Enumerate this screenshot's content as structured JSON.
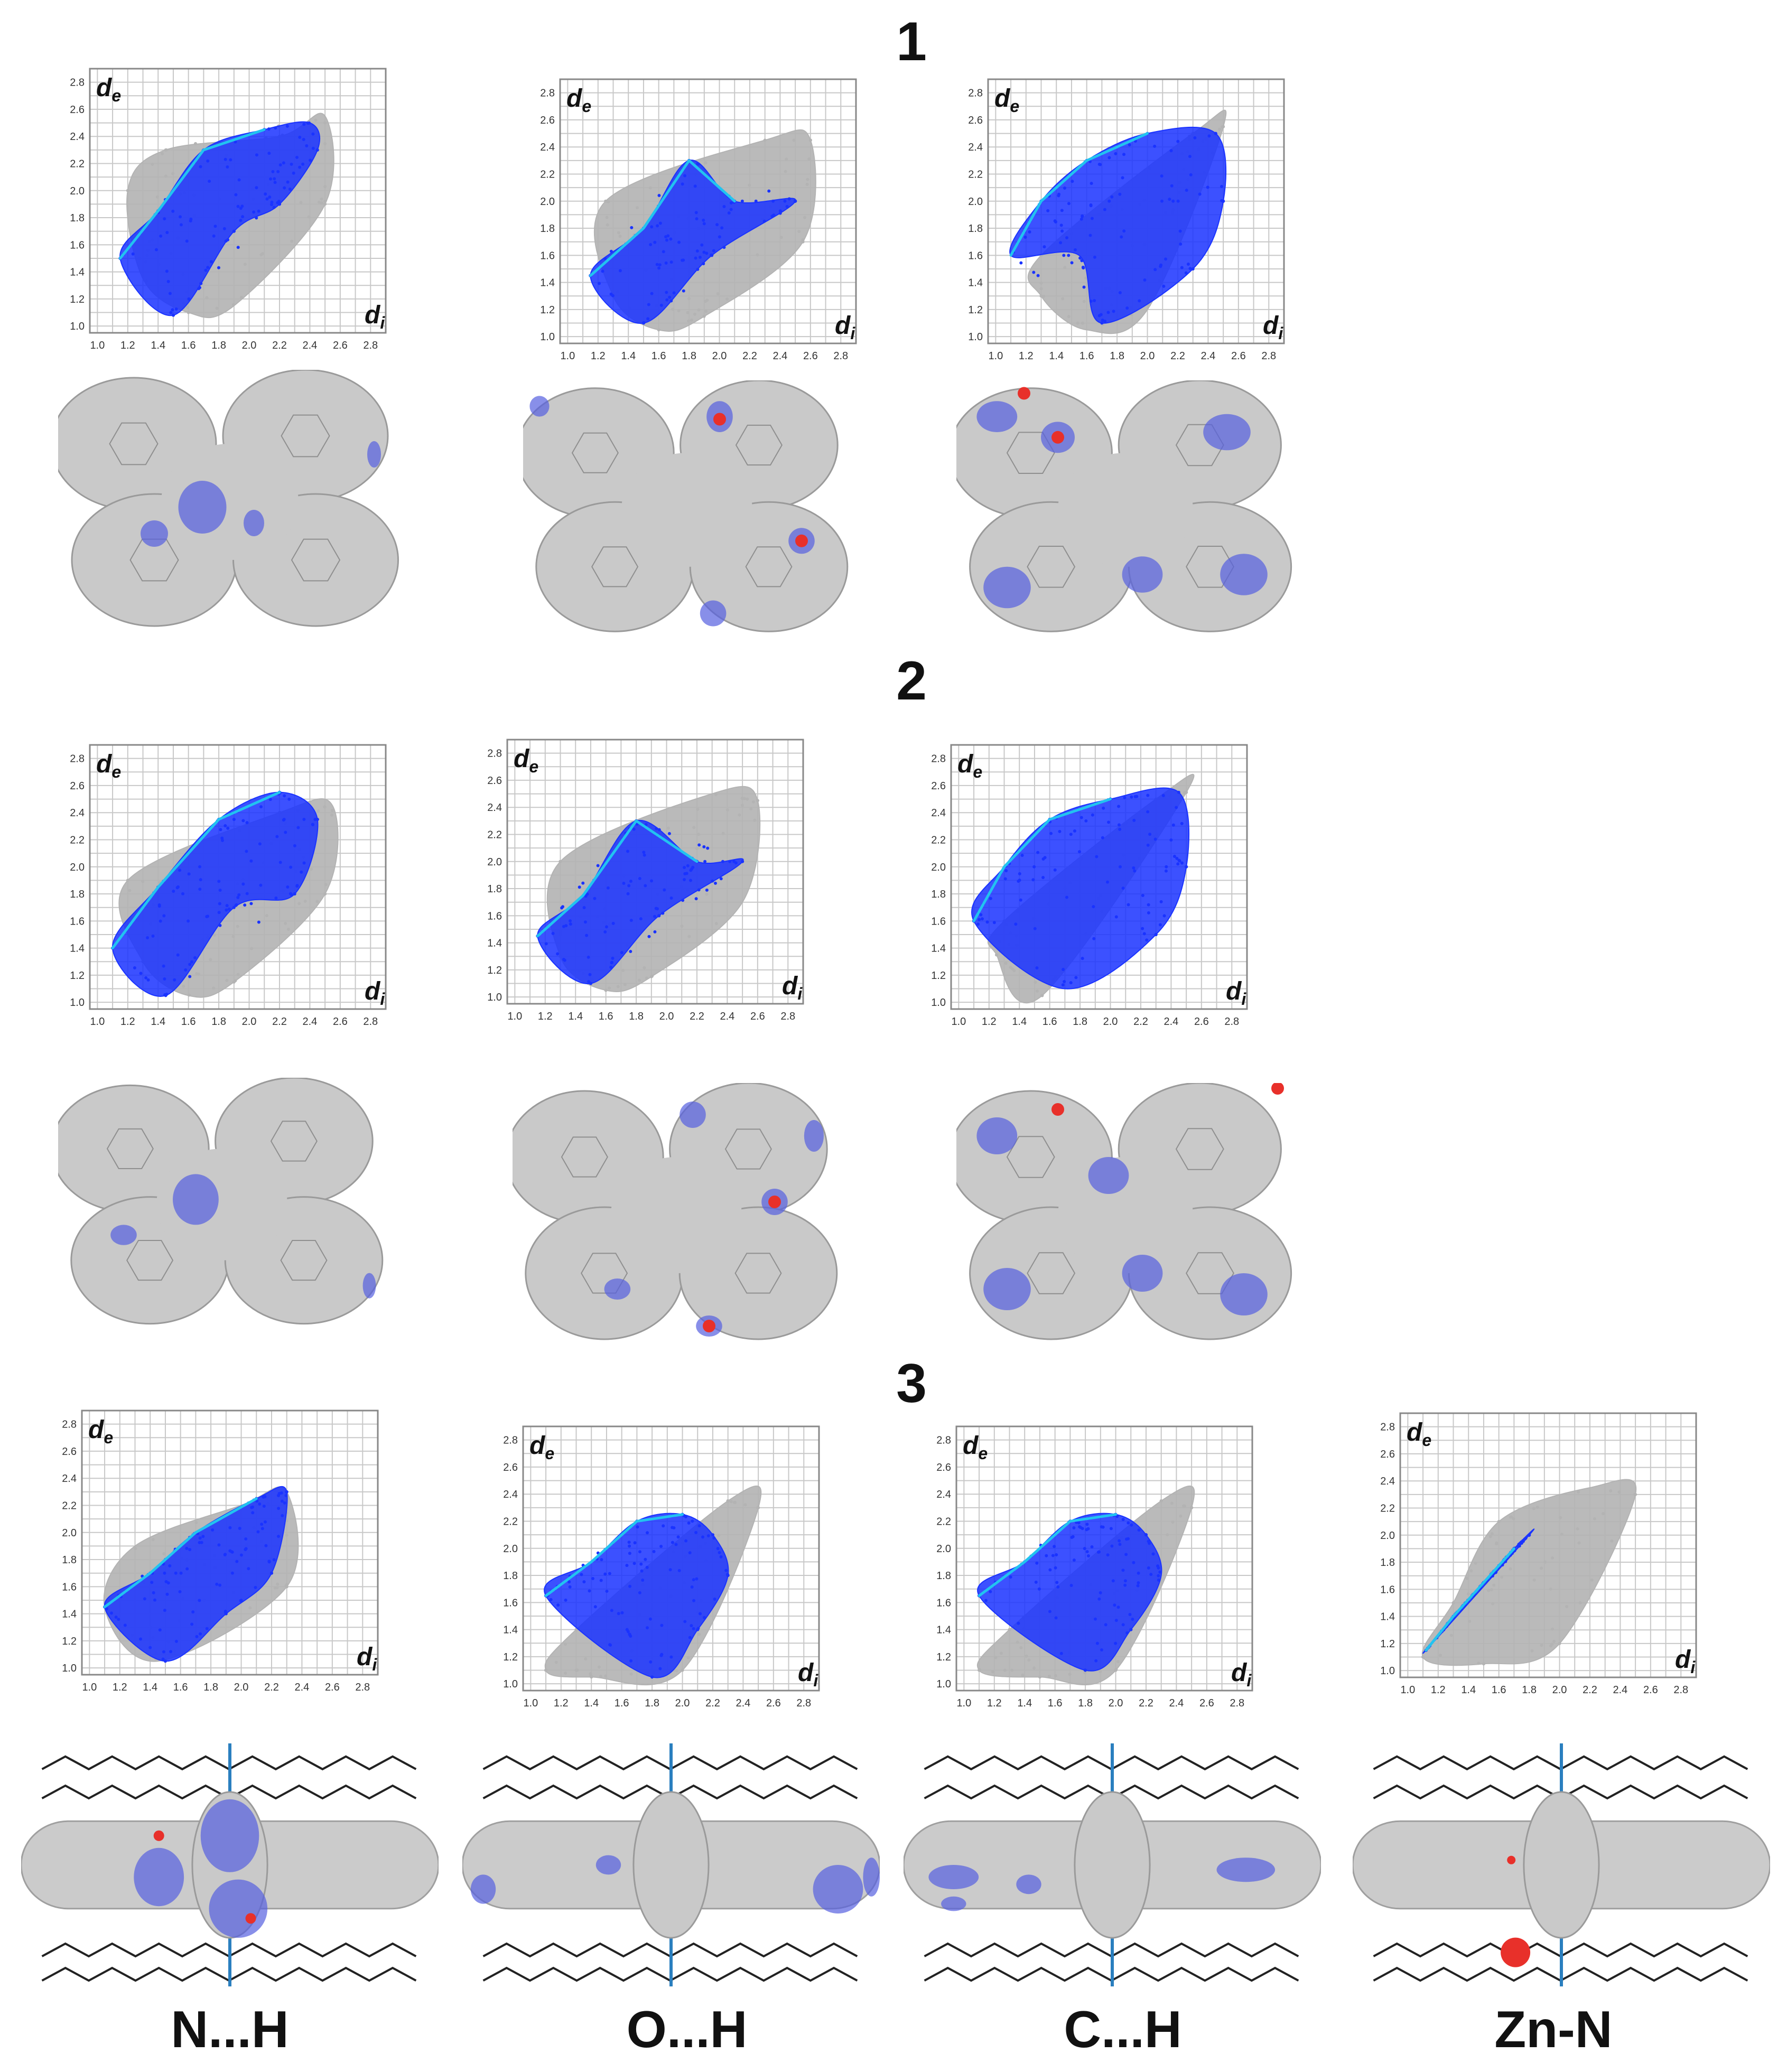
{
  "sections": [
    "1",
    "2",
    "3"
  ],
  "column_labels": [
    "N...H",
    "O...H",
    "C...H",
    "Zn-N"
  ],
  "axis": {
    "x_symbol": "d",
    "x_sub": "i",
    "y_symbol": "d",
    "y_sub": "e",
    "ticks": [
      "1.0",
      "1.2",
      "1.4",
      "1.6",
      "1.8",
      "2.0",
      "2.2",
      "2.4",
      "2.6",
      "2.8"
    ]
  },
  "colors": {
    "full_fingerprint": "#b3b3b3",
    "highlight": "#1a33ff",
    "highlight_core": "#22c3f0",
    "surface": "#c9c9c9",
    "surface_edge": "#9a9a9a",
    "contact_blue": "#5560e0",
    "contact_red": "#e8302a",
    "bonds": "#555555"
  },
  "chart_data": [
    {
      "type": "scatter",
      "section": "1",
      "contact": "N...H",
      "xlabel": "di",
      "ylabel": "de",
      "xlim": [
        0.95,
        2.9
      ],
      "ylim": [
        0.95,
        2.9
      ],
      "grid": true,
      "series": [
        {
          "role": "full",
          "points": [
            [
              1.3,
              1.35
            ],
            [
              1.6,
              1.1
            ],
            [
              2.2,
              2.4
            ],
            [
              2.5,
              2.55
            ],
            [
              1.2,
              2.0
            ],
            [
              2.5,
              1.9
            ],
            [
              1.9,
              1.15
            ],
            [
              1.45,
              2.3
            ]
          ]
        },
        {
          "role": "contact",
          "points": [
            [
              1.15,
              1.5
            ],
            [
              1.4,
              1.85
            ],
            [
              1.7,
              2.3
            ],
            [
              2.1,
              2.45
            ],
            [
              2.4,
              2.5
            ],
            [
              1.5,
              1.08
            ],
            [
              1.9,
              1.7
            ],
            [
              2.2,
              1.9
            ],
            [
              2.45,
              2.3
            ]
          ]
        }
      ]
    },
    {
      "type": "scatter",
      "section": "1",
      "contact": "O...H",
      "xlabel": "di",
      "ylabel": "de",
      "xlim": [
        0.95,
        2.9
      ],
      "ylim": [
        0.95,
        2.9
      ],
      "grid": true,
      "series": [
        {
          "role": "full",
          "points": [
            [
              1.3,
              1.3
            ],
            [
              1.6,
              1.05
            ],
            [
              2.3,
              2.45
            ],
            [
              2.6,
              2.45
            ],
            [
              1.25,
              2.0
            ],
            [
              2.55,
              1.7
            ],
            [
              1.9,
              1.15
            ]
          ]
        },
        {
          "role": "contact",
          "points": [
            [
              1.15,
              1.45
            ],
            [
              1.5,
              1.8
            ],
            [
              1.8,
              2.3
            ],
            [
              2.1,
              2.0
            ],
            [
              2.5,
              2.0
            ],
            [
              1.5,
              1.1
            ],
            [
              1.95,
              1.6
            ]
          ]
        }
      ]
    },
    {
      "type": "scatter",
      "section": "1",
      "contact": "C...H",
      "xlabel": "di",
      "ylabel": "de",
      "xlim": [
        0.95,
        2.9
      ],
      "ylim": [
        0.95,
        2.9
      ],
      "grid": true,
      "series": [
        {
          "role": "full",
          "points": [
            [
              1.3,
              1.3
            ],
            [
              1.6,
              1.05
            ],
            [
              2.3,
              2.5
            ],
            [
              2.5,
              2.55
            ],
            [
              1.3,
              1.6
            ],
            [
              2.0,
              1.2
            ]
          ]
        },
        {
          "role": "contact",
          "points": [
            [
              1.1,
              1.6
            ],
            [
              1.3,
              2.0
            ],
            [
              1.6,
              2.3
            ],
            [
              2.0,
              2.5
            ],
            [
              2.45,
              2.5
            ],
            [
              2.5,
              2.0
            ],
            [
              2.3,
              1.5
            ],
            [
              1.7,
              1.1
            ],
            [
              1.55,
              1.6
            ]
          ]
        }
      ]
    },
    {
      "type": "scatter",
      "section": "2",
      "contact": "N...H",
      "xlabel": "di",
      "ylabel": "de",
      "xlim": [
        0.95,
        2.9
      ],
      "ylim": [
        0.95,
        2.9
      ],
      "grid": true,
      "series": [
        {
          "role": "full",
          "points": [
            [
              1.3,
              1.3
            ],
            [
              1.6,
              1.05
            ],
            [
              2.2,
              2.4
            ],
            [
              2.55,
              2.45
            ],
            [
              1.2,
              1.9
            ],
            [
              2.5,
              1.8
            ],
            [
              1.9,
              1.15
            ]
          ]
        },
        {
          "role": "contact",
          "points": [
            [
              1.1,
              1.4
            ],
            [
              1.4,
              1.85
            ],
            [
              1.8,
              2.35
            ],
            [
              2.2,
              2.55
            ],
            [
              2.45,
              2.35
            ],
            [
              1.45,
              1.05
            ],
            [
              1.9,
              1.7
            ],
            [
              2.3,
              1.8
            ]
          ]
        }
      ]
    },
    {
      "type": "scatter",
      "section": "2",
      "contact": "O...H",
      "xlabel": "di",
      "ylabel": "de",
      "xlim": [
        0.95,
        2.9
      ],
      "ylim": [
        0.95,
        2.9
      ],
      "grid": true,
      "series": [
        {
          "role": "full",
          "points": [
            [
              1.3,
              1.3
            ],
            [
              1.6,
              1.05
            ],
            [
              2.3,
              2.5
            ],
            [
              2.6,
              2.45
            ],
            [
              1.3,
              2.0
            ],
            [
              2.5,
              1.7
            ],
            [
              1.9,
              1.15
            ]
          ]
        },
        {
          "role": "contact",
          "points": [
            [
              1.15,
              1.45
            ],
            [
              1.45,
              1.75
            ],
            [
              1.8,
              2.3
            ],
            [
              2.2,
              2.0
            ],
            [
              2.5,
              2.0
            ],
            [
              1.5,
              1.1
            ],
            [
              1.95,
              1.6
            ]
          ]
        }
      ]
    },
    {
      "type": "scatter",
      "section": "2",
      "contact": "C...H",
      "xlabel": "di",
      "ylabel": "de",
      "xlim": [
        0.95,
        2.9
      ],
      "ylim": [
        0.95,
        2.9
      ],
      "grid": true,
      "series": [
        {
          "role": "full",
          "points": [
            [
              1.25,
              1.35
            ],
            [
              1.55,
              1.05
            ],
            [
              2.3,
              2.5
            ],
            [
              2.5,
              2.55
            ],
            [
              1.3,
              1.6
            ]
          ]
        },
        {
          "role": "contact",
          "points": [
            [
              1.1,
              1.6
            ],
            [
              1.3,
              2.0
            ],
            [
              1.6,
              2.35
            ],
            [
              2.0,
              2.5
            ],
            [
              2.45,
              2.55
            ],
            [
              2.5,
              2.0
            ],
            [
              2.3,
              1.5
            ],
            [
              1.7,
              1.1
            ]
          ]
        }
      ]
    },
    {
      "type": "scatter",
      "section": "3",
      "contact": "N...H",
      "xlabel": "di",
      "ylabel": "de",
      "xlim": [
        0.95,
        2.9
      ],
      "ylim": [
        0.95,
        2.9
      ],
      "grid": true,
      "series": [
        {
          "role": "full",
          "points": [
            [
              1.1,
              1.45
            ],
            [
              1.45,
              1.05
            ],
            [
              2.0,
              2.2
            ],
            [
              2.3,
              2.3
            ],
            [
              1.3,
              1.9
            ],
            [
              2.3,
              1.6
            ]
          ]
        },
        {
          "role": "contact",
          "points": [
            [
              1.1,
              1.45
            ],
            [
              1.4,
              1.7
            ],
            [
              1.7,
              2.0
            ],
            [
              2.1,
              2.25
            ],
            [
              2.3,
              2.3
            ],
            [
              1.5,
              1.05
            ],
            [
              1.9,
              1.4
            ],
            [
              2.2,
              1.7
            ]
          ]
        }
      ]
    },
    {
      "type": "scatter",
      "section": "3",
      "contact": "O...H",
      "xlabel": "di",
      "ylabel": "de",
      "xlim": [
        0.95,
        2.9
      ],
      "ylim": [
        0.95,
        2.9
      ],
      "grid": true,
      "series": [
        {
          "role": "full",
          "points": [
            [
              1.1,
              1.1
            ],
            [
              1.4,
              1.05
            ],
            [
              2.3,
              2.35
            ],
            [
              2.5,
              2.3
            ],
            [
              1.3,
              1.4
            ],
            [
              2.0,
              1.1
            ]
          ]
        },
        {
          "role": "contact",
          "points": [
            [
              1.1,
              1.65
            ],
            [
              1.4,
              1.9
            ],
            [
              1.7,
              2.2
            ],
            [
              2.0,
              2.25
            ],
            [
              2.2,
              2.1
            ],
            [
              2.3,
              1.8
            ],
            [
              2.1,
              1.4
            ],
            [
              1.8,
              1.05
            ]
          ]
        }
      ]
    },
    {
      "type": "scatter",
      "section": "3",
      "contact": "C...H",
      "xlabel": "di",
      "ylabel": "de",
      "xlim": [
        0.95,
        2.9
      ],
      "ylim": [
        0.95,
        2.9
      ],
      "grid": true,
      "series": [
        {
          "role": "full",
          "points": [
            [
              1.1,
              1.1
            ],
            [
              1.5,
              1.05
            ],
            [
              2.3,
              2.35
            ],
            [
              2.5,
              2.3
            ],
            [
              1.3,
              1.4
            ],
            [
              2.0,
              1.1
            ]
          ]
        },
        {
          "role": "contact",
          "points": [
            [
              1.1,
              1.65
            ],
            [
              1.4,
              1.9
            ],
            [
              1.7,
              2.2
            ],
            [
              2.0,
              2.25
            ],
            [
              2.2,
              2.1
            ],
            [
              2.3,
              1.8
            ],
            [
              2.1,
              1.4
            ],
            [
              1.8,
              1.1
            ]
          ]
        }
      ]
    },
    {
      "type": "scatter",
      "section": "3",
      "contact": "Zn-N",
      "xlabel": "di",
      "ylabel": "de",
      "xlim": [
        0.95,
        2.9
      ],
      "ylim": [
        0.95,
        2.9
      ],
      "grid": true,
      "series": [
        {
          "role": "full",
          "points": [
            [
              1.1,
              1.1
            ],
            [
              1.5,
              1.05
            ],
            [
              2.2,
              2.35
            ],
            [
              2.5,
              2.3
            ],
            [
              1.3,
              1.5
            ],
            [
              2.0,
              1.2
            ],
            [
              1.6,
              2.1
            ]
          ]
        },
        {
          "role": "contact",
          "points": [
            [
              1.12,
              1.15
            ],
            [
              1.3,
              1.4
            ],
            [
              1.5,
              1.65
            ],
            [
              1.7,
              1.9
            ],
            [
              1.8,
              2.0
            ]
          ]
        }
      ]
    }
  ]
}
